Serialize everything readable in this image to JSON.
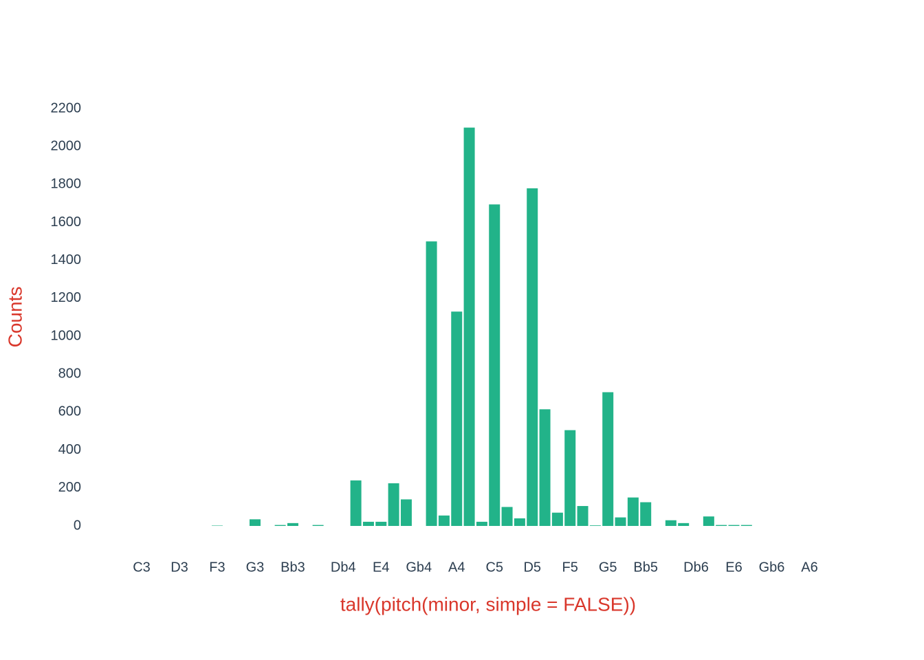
{
  "chart_data": {
    "type": "bar",
    "x_label": "tally(pitch(minor, simple = FALSE))",
    "y_label": "Counts",
    "color": "#22b389",
    "categories": [
      "C3",
      null,
      null,
      "D3",
      null,
      null,
      "F3",
      null,
      null,
      "G3",
      null,
      null,
      "Bb3",
      null,
      null,
      null,
      "Db4",
      null,
      null,
      "E4",
      null,
      null,
      "Gb4",
      null,
      null,
      "A4",
      null,
      null,
      "C5",
      null,
      null,
      "D5",
      null,
      null,
      "F5",
      null,
      null,
      "G5",
      null,
      null,
      "Bb5",
      null,
      null,
      null,
      "Db6",
      null,
      null,
      "E6",
      null,
      null,
      "Gb6",
      null,
      null,
      "A6"
    ],
    "values": [
      0,
      0,
      0,
      0,
      0,
      0,
      2,
      0,
      0,
      35,
      0,
      5,
      15,
      0,
      5,
      0,
      0,
      240,
      22,
      22,
      225,
      140,
      0,
      1500,
      55,
      1130,
      2100,
      22,
      1695,
      100,
      40,
      1780,
      615,
      70,
      505,
      105,
      3,
      705,
      45,
      150,
      125,
      0,
      30,
      15,
      0,
      50,
      5,
      5,
      5,
      0,
      0,
      0,
      0,
      0
    ],
    "ylim": [
      0,
      2200
    ],
    "yticks": [
      0,
      200,
      400,
      600,
      800,
      1000,
      1200,
      1400,
      1600,
      1800,
      2000,
      2200
    ]
  }
}
